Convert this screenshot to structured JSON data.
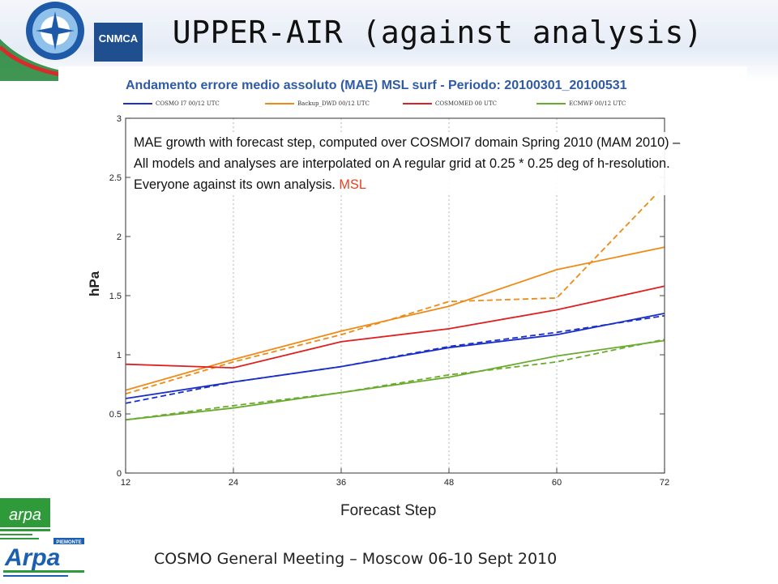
{
  "slide": {
    "title": "UPPER-AIR (against analysis)",
    "footer": "COSMO General Meeting – Moscow 06-10 Sept 2010",
    "logo_text": "CNMCA",
    "logo_arpa_emr": "arpa",
    "logo_arpa_pie": "Arpa",
    "logo_arpa_pie_region": "PIEMONTE"
  },
  "annotation": {
    "text": "MAE growth with forecast step, computed over COSMOI7 domain Spring 2010 (MAM 2010) – All models and analyses are interpolated on A regular grid at 0.25 * 0.25 deg of h-resolution. Everyone against its own analysis.",
    "highlight": "MSL",
    "highlight_color": "#e8401a"
  },
  "chart_data": {
    "type": "line",
    "title": "Andamento errore medio assoluto (MAE) MSL surf - Periodo: 20100301_20100531",
    "xlabel": "Forecast Step",
    "ylabel": "hPa",
    "x": [
      12,
      24,
      36,
      48,
      60,
      72
    ],
    "xlim": [
      12,
      72
    ],
    "ylim": [
      0,
      3
    ],
    "yticks": [
      0,
      0.5,
      1,
      1.5,
      2,
      2.5,
      3
    ],
    "yticklabels": [
      "0",
      "0.5",
      "1",
      "1.5",
      "2",
      "2.5",
      "3"
    ],
    "grid": "vertical dotted",
    "legend_position": "top",
    "series": [
      {
        "name": "COSMO I7 00/12 UTC",
        "color": "#1a2fc8",
        "style": "solid",
        "values": [
          0.63,
          0.77,
          0.9,
          1.06,
          1.17,
          1.35
        ]
      },
      {
        "name": "",
        "color": "#1a2fc8",
        "style": "dashed",
        "values": [
          0.59,
          0.77,
          0.9,
          1.07,
          1.19,
          1.33
        ]
      },
      {
        "name": "Backup_DWD 00/12 UTC",
        "color": "#f08a17",
        "style": "solid",
        "values": [
          0.7,
          0.96,
          1.2,
          1.41,
          1.72,
          1.91
        ]
      },
      {
        "name": "",
        "color": "#f08a17",
        "style": "dashed",
        "values": [
          0.67,
          0.94,
          1.17,
          1.45,
          1.48,
          2.43
        ]
      },
      {
        "name": "COSMOMED 00 UTC",
        "color": "#e02020",
        "style": "solid",
        "values": [
          0.92,
          0.89,
          1.11,
          1.22,
          1.38,
          1.58
        ]
      },
      {
        "name": "ECMWF 00/12 UTC",
        "color": "#6aab2e",
        "style": "solid",
        "values": [
          0.45,
          0.55,
          0.68,
          0.81,
          0.99,
          1.12
        ]
      },
      {
        "name": "",
        "color": "#6aab2e",
        "style": "dashed",
        "values": [
          0.45,
          0.57,
          0.68,
          0.83,
          0.94,
          1.13
        ]
      }
    ]
  }
}
